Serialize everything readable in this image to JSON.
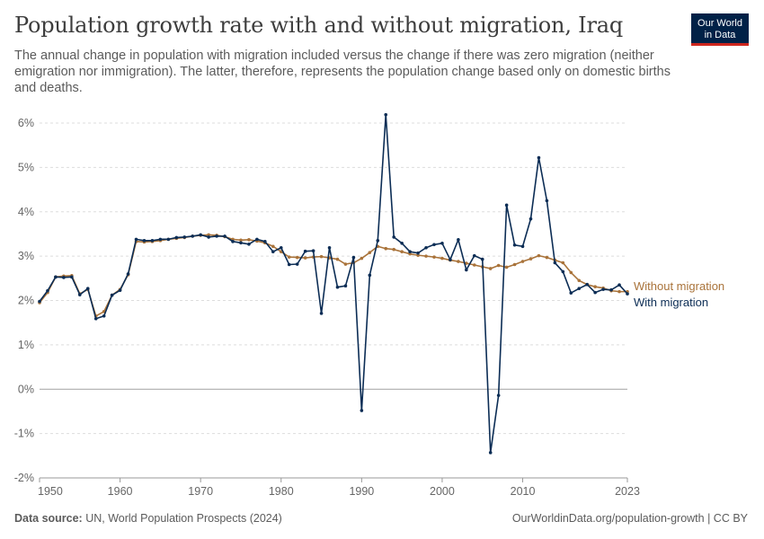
{
  "header": {
    "title": "Population growth rate with and without migration, Iraq",
    "subtitle": "The annual change in population with migration included versus the change if there was zero migration (neither emigration nor immigration). The latter, therefore, represents the population change based only on domestic births and deaths.",
    "logo_line1": "Our World",
    "logo_line2": "in Data"
  },
  "footer": {
    "source_label": "Data source:",
    "source_text": "UN, World Population Prospects (2024)",
    "url_text": "OurWorldinData.org/population-growth | CC BY"
  },
  "colors": {
    "with_migration": "#0c2d55",
    "without_migration": "#a9733a",
    "gridline": "#dddddd",
    "zero_line": "#a1a1a1",
    "logo_bg": "#002147",
    "logo_accent": "#ce261e"
  },
  "chart_data": {
    "type": "line",
    "title": "Population growth rate with and without migration, Iraq",
    "xlabel": "",
    "ylabel": "",
    "xlim": [
      1950,
      2023
    ],
    "ylim": [
      -2,
      6
    ],
    "y_ticks": [
      -2,
      -1,
      0,
      1,
      2,
      3,
      4,
      5,
      6
    ],
    "y_tick_labels": [
      "-2%",
      "-1%",
      "0%",
      "1%",
      "2%",
      "3%",
      "4%",
      "5%",
      "6%"
    ],
    "x_ticks": [
      1950,
      1960,
      1970,
      1980,
      1990,
      2000,
      2010,
      2023
    ],
    "x_tick_labels": [
      "1950",
      "1960",
      "1970",
      "1980",
      "1990",
      "2000",
      "2010",
      "2023"
    ],
    "grid": "horizontal dashed",
    "legend_position": "right, inline labels at series end",
    "x": [
      1950,
      1951,
      1952,
      1953,
      1954,
      1955,
      1956,
      1957,
      1958,
      1959,
      1960,
      1961,
      1962,
      1963,
      1964,
      1965,
      1966,
      1967,
      1968,
      1969,
      1970,
      1971,
      1972,
      1973,
      1974,
      1975,
      1976,
      1977,
      1978,
      1979,
      1980,
      1981,
      1982,
      1983,
      1984,
      1985,
      1986,
      1987,
      1988,
      1989,
      1990,
      1991,
      1992,
      1993,
      1994,
      1995,
      1996,
      1997,
      1998,
      1999,
      2000,
      2001,
      2002,
      2003,
      2004,
      2005,
      2006,
      2007,
      2008,
      2009,
      2010,
      2011,
      2012,
      2013,
      2014,
      2015,
      2016,
      2017,
      2018,
      2019,
      2020,
      2021,
      2022,
      2023
    ],
    "series": [
      {
        "name": "Without migration",
        "color": "#a9733a",
        "values": [
          1.95,
          2.18,
          2.53,
          2.55,
          2.56,
          2.15,
          2.25,
          1.65,
          1.75,
          2.12,
          2.25,
          2.58,
          3.33,
          3.32,
          3.33,
          3.35,
          3.38,
          3.4,
          3.42,
          3.45,
          3.47,
          3.48,
          3.47,
          3.44,
          3.38,
          3.36,
          3.37,
          3.34,
          3.3,
          3.22,
          3.1,
          2.98,
          2.97,
          2.96,
          2.98,
          2.99,
          2.96,
          2.93,
          2.82,
          2.85,
          2.95,
          3.08,
          3.22,
          3.17,
          3.15,
          3.1,
          3.05,
          3.02,
          3.0,
          2.98,
          2.95,
          2.91,
          2.88,
          2.84,
          2.8,
          2.76,
          2.72,
          2.79,
          2.75,
          2.81,
          2.88,
          2.94,
          3.01,
          2.97,
          2.91,
          2.85,
          2.63,
          2.45,
          2.36,
          2.31,
          2.28,
          2.22,
          2.2,
          2.2
        ]
      },
      {
        "name": "With migration",
        "color": "#0c2d55",
        "values": [
          1.98,
          2.22,
          2.53,
          2.52,
          2.53,
          2.13,
          2.27,
          1.59,
          1.65,
          2.12,
          2.23,
          2.6,
          3.38,
          3.35,
          3.35,
          3.38,
          3.38,
          3.42,
          3.43,
          3.45,
          3.48,
          3.43,
          3.45,
          3.45,
          3.33,
          3.3,
          3.27,
          3.38,
          3.33,
          3.1,
          3.19,
          2.81,
          2.82,
          3.11,
          3.12,
          1.71,
          3.19,
          2.3,
          2.33,
          2.97,
          -0.48,
          2.57,
          3.35,
          6.19,
          3.43,
          3.29,
          3.1,
          3.07,
          3.19,
          3.26,
          3.29,
          2.92,
          3.37,
          2.69,
          3.01,
          2.93,
          -1.43,
          -0.14,
          4.15,
          3.25,
          3.22,
          3.84,
          5.22,
          4.25,
          2.85,
          2.65,
          2.17,
          2.27,
          2.36,
          2.18,
          2.25,
          2.24,
          2.35,
          2.15
        ]
      }
    ]
  }
}
